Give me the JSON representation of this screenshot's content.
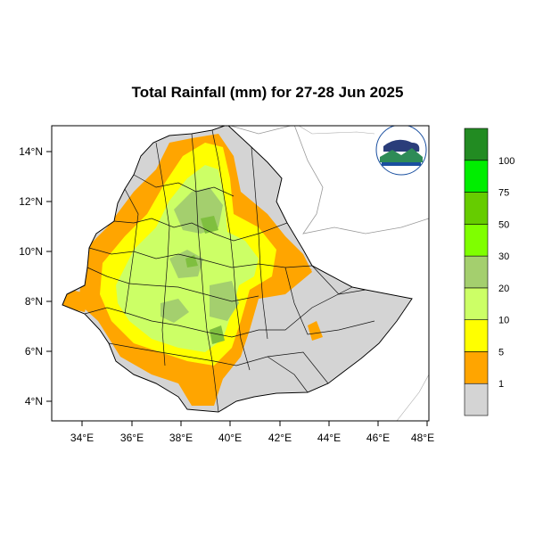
{
  "title": "Total Rainfall (mm) for 27-28 Jun 2025",
  "map": {
    "lon_labels": [
      "34°E",
      "36°E",
      "38°E",
      "40°E",
      "42°E",
      "44°E",
      "46°E",
      "48°E"
    ],
    "lat_labels": [
      "14°N",
      "12°N",
      "10°N",
      "8°N",
      "6°N",
      "4°N"
    ]
  },
  "legend": {
    "levels": [
      "1",
      "5",
      "10",
      "20",
      "30",
      "50",
      "75",
      "100"
    ],
    "colors": [
      "#d4d4d4",
      "#ffa500",
      "#ffff00",
      "#ccff66",
      "#a4cf6e",
      "#7fff00",
      "#66cc00",
      "#00ee00",
      "#228b22"
    ]
  },
  "logo": {
    "description_colors": [
      "#1a4fa0",
      "#2e8b57"
    ]
  }
}
